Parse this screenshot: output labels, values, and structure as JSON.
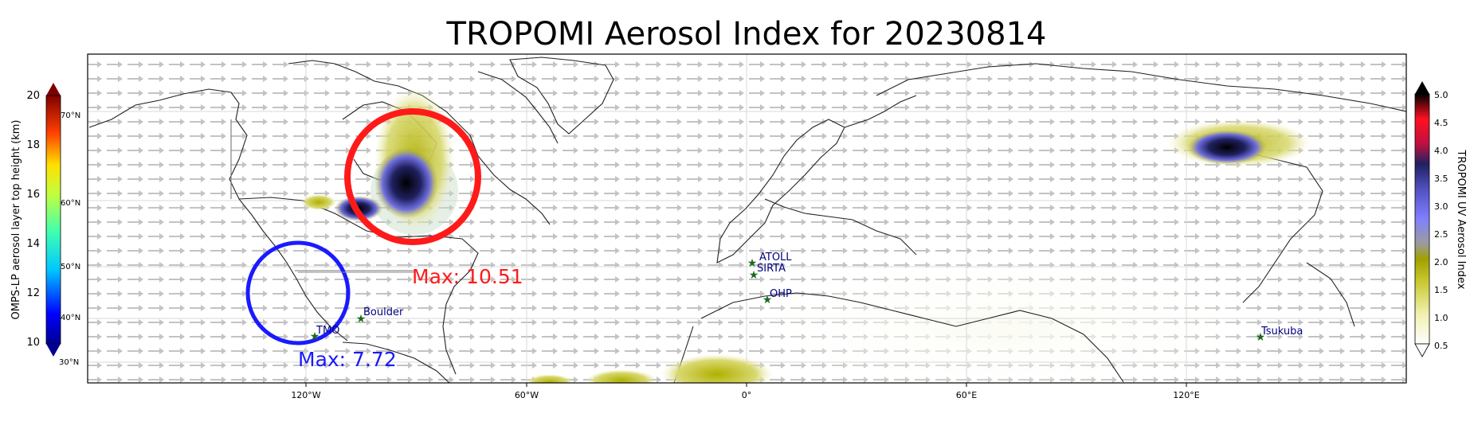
{
  "title": "TROPOMI Aerosol Index for 20230814",
  "left_colorbar": {
    "label": "OMPS-LP aerosol layer top height (km)",
    "ticks": [
      "10",
      "12",
      "14",
      "16",
      "18",
      "20"
    ],
    "lat_ticks": [
      "30°N",
      "40°N",
      "50°N",
      "60°N",
      "70°N"
    ]
  },
  "right_colorbar": {
    "label": "TROPOMI UV Aerosol Index",
    "ticks": [
      "0.5",
      "1.0",
      "1.5",
      "2.0",
      "2.5",
      "3.0",
      "3.5",
      "4.0",
      "4.5",
      "5.0"
    ]
  },
  "x_ticks": [
    "120°W",
    "60°W",
    "0°",
    "60°E",
    "120°E"
  ],
  "annotations": {
    "max_red": "Max: 10.51",
    "max_blue": "Max: 7.72"
  },
  "stations": [
    {
      "name": "ATOLL"
    },
    {
      "name": "SIRTA"
    },
    {
      "name": "OHP"
    },
    {
      "name": "Boulder"
    },
    {
      "name": "TMO"
    },
    {
      "name": "Tsukuba"
    }
  ],
  "colors": {
    "red_circle": "#ff1a1a",
    "blue_circle": "#1a1aff",
    "station_marker": "#1a6b1a",
    "station_label": "#000080"
  }
}
